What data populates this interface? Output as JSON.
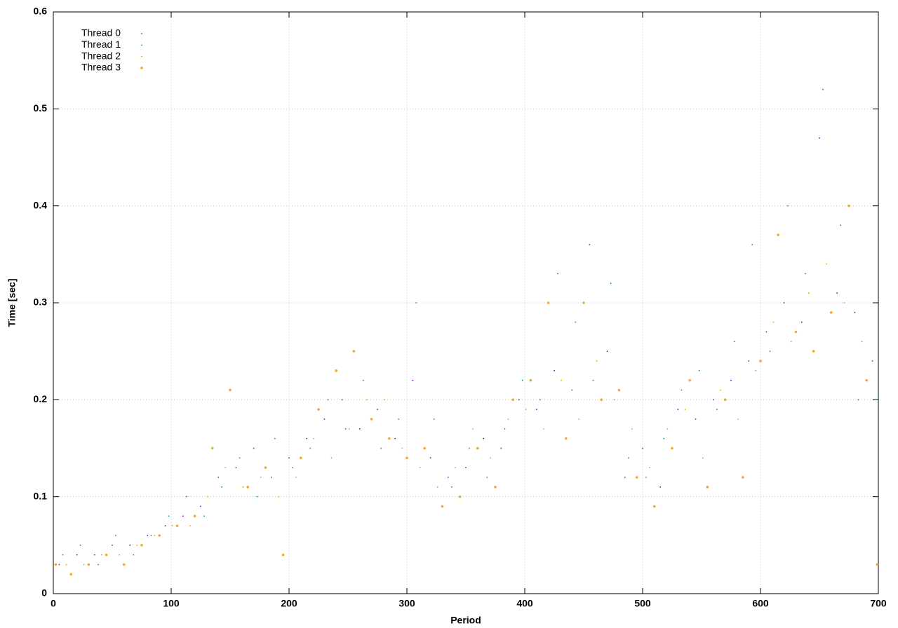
{
  "chart_data": {
    "type": "scatter",
    "x_label": "Period",
    "y_label": "Time [sec]",
    "xlim": [
      0,
      700
    ],
    "ylim": [
      0,
      0.6
    ],
    "xticks": [
      0,
      100,
      200,
      300,
      400,
      500,
      600,
      700
    ],
    "yticks": [
      0,
      0.1,
      0.2,
      0.3,
      0.4,
      0.5,
      0.6
    ],
    "grid": true,
    "legend": "upper left",
    "series": [
      {
        "name": "Thread 0",
        "color": "#9400d3",
        "x": [
          5,
          20,
          35,
          50,
          65,
          80,
          95,
          110,
          125,
          140,
          155,
          170,
          185,
          200,
          215,
          230,
          245,
          260,
          275,
          290,
          305,
          320,
          335,
          350,
          365,
          380,
          395,
          410,
          425,
          440,
          455,
          470,
          485,
          500,
          515,
          530,
          545,
          560,
          575,
          590,
          605,
          620,
          635,
          650,
          665,
          680,
          695
        ],
        "values": [
          0.03,
          0.04,
          0.04,
          0.05,
          0.05,
          0.06,
          0.07,
          0.08,
          0.09,
          0.12,
          0.13,
          0.15,
          0.12,
          0.14,
          0.16,
          0.18,
          0.2,
          0.17,
          0.19,
          0.16,
          0.22,
          0.14,
          0.12,
          0.13,
          0.16,
          0.15,
          0.2,
          0.19,
          0.23,
          0.21,
          0.36,
          0.25,
          0.12,
          0.15,
          0.11,
          0.19,
          0.18,
          0.2,
          0.22,
          0.24,
          0.27,
          0.3,
          0.28,
          0.47,
          0.31,
          0.29,
          0.24
        ]
      },
      {
        "name": "Thread 1",
        "color": "#009e73",
        "x": [
          8,
          23,
          38,
          53,
          68,
          83,
          98,
          113,
          128,
          143,
          158,
          173,
          188,
          203,
          218,
          233,
          248,
          263,
          278,
          293,
          308,
          323,
          338,
          353,
          368,
          383,
          398,
          413,
          428,
          443,
          458,
          473,
          488,
          503,
          518,
          533,
          548,
          563,
          578,
          593,
          608,
          623,
          638,
          653,
          668,
          683,
          698
        ],
        "values": [
          0.04,
          0.05,
          0.03,
          0.06,
          0.04,
          0.06,
          0.08,
          0.1,
          0.08,
          0.11,
          0.14,
          0.1,
          0.16,
          0.13,
          0.15,
          0.2,
          0.17,
          0.22,
          0.15,
          0.18,
          0.3,
          0.18,
          0.11,
          0.15,
          0.12,
          0.17,
          0.22,
          0.2,
          0.33,
          0.28,
          0.22,
          0.32,
          0.14,
          0.12,
          0.16,
          0.21,
          0.23,
          0.19,
          0.26,
          0.36,
          0.25,
          0.4,
          0.33,
          0.52,
          0.38,
          0.2,
          0.2
        ]
      },
      {
        "name": "Thread 2",
        "color": "#e69f00",
        "x": [
          11,
          26,
          41,
          56,
          71,
          86,
          101,
          116,
          131,
          146,
          161,
          176,
          191,
          206,
          221,
          236,
          251,
          266,
          281,
          296,
          311,
          326,
          341,
          356,
          371,
          386,
          401,
          416,
          431,
          446,
          461,
          476,
          491,
          506,
          521,
          536,
          551,
          566,
          581,
          596,
          611,
          626,
          641,
          656,
          671,
          686
        ],
        "values": [
          0.03,
          0.03,
          0.04,
          0.04,
          0.05,
          0.06,
          0.07,
          0.07,
          0.1,
          0.13,
          0.11,
          0.12,
          0.1,
          0.12,
          0.16,
          0.14,
          0.17,
          0.2,
          0.2,
          0.15,
          0.13,
          0.11,
          0.13,
          0.17,
          0.14,
          0.18,
          0.19,
          0.17,
          0.22,
          0.18,
          0.24,
          0.2,
          0.17,
          0.13,
          0.17,
          0.19,
          0.14,
          0.21,
          0.18,
          0.23,
          0.28,
          0.26,
          0.31,
          0.34,
          0.3,
          0.26
        ]
      },
      {
        "name": "Thread 3",
        "color": "#f0a830",
        "x": [
          2,
          15,
          30,
          45,
          60,
          75,
          90,
          105,
          120,
          135,
          150,
          165,
          180,
          195,
          210,
          225,
          240,
          255,
          270,
          285,
          300,
          315,
          330,
          345,
          360,
          375,
          390,
          405,
          420,
          435,
          450,
          465,
          480,
          495,
          510,
          525,
          540,
          555,
          570,
          585,
          600,
          615,
          630,
          645,
          660,
          675,
          690,
          699
        ],
        "values": [
          0.03,
          0.02,
          0.03,
          0.04,
          0.03,
          0.05,
          0.06,
          0.07,
          0.08,
          0.15,
          0.21,
          0.11,
          0.13,
          0.04,
          0.14,
          0.19,
          0.23,
          0.25,
          0.18,
          0.16,
          0.14,
          0.15,
          0.09,
          0.1,
          0.15,
          0.11,
          0.2,
          0.22,
          0.3,
          0.16,
          0.3,
          0.2,
          0.21,
          0.12,
          0.09,
          0.15,
          0.22,
          0.11,
          0.2,
          0.12,
          0.24,
          0.37,
          0.27,
          0.25,
          0.29,
          0.4,
          0.22,
          0.03
        ]
      }
    ]
  }
}
